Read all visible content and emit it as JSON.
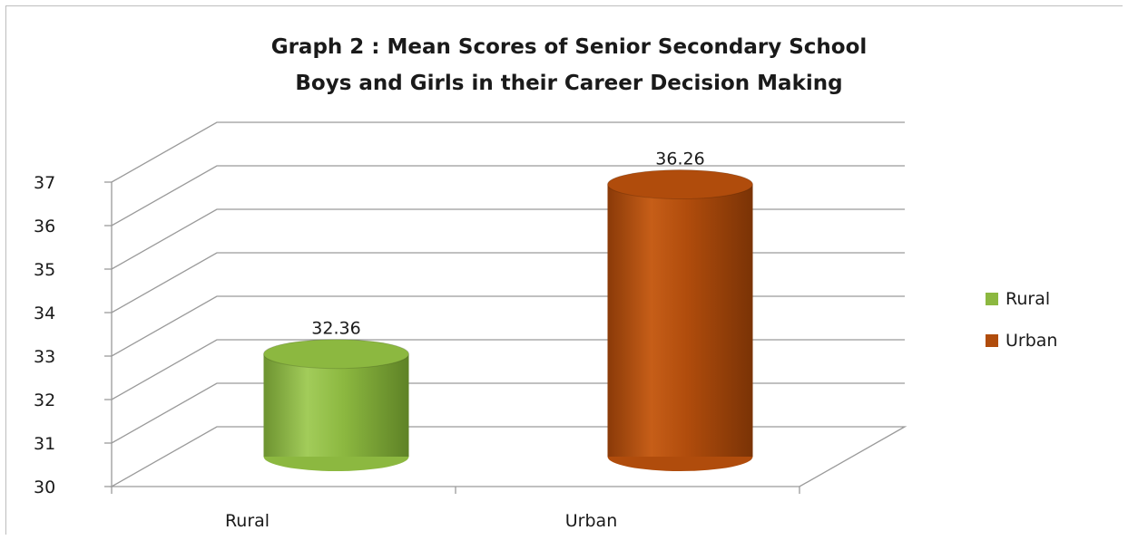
{
  "chart_data": {
    "type": "bar",
    "style": "3d-cylinder",
    "title": "Graph 2   : Mean Scores  of Senior Secondary School Boys and Girls  in their Career Decision Making",
    "title_lines": [
      "Graph 2   : Mean Scores  of Senior Secondary School",
      "Boys and Girls  in their Career Decision Making"
    ],
    "categories": [
      "Rural",
      "Urban"
    ],
    "series": [
      {
        "name": "Rural",
        "color": "#8cb840",
        "values": [
          32.36,
          null
        ]
      },
      {
        "name": "Urban",
        "color": "#b04c0c",
        "values": [
          null,
          36.26
        ]
      }
    ],
    "data_labels": [
      "32.36",
      "36.26"
    ],
    "ylim": [
      30,
      37
    ],
    "yticks": [
      "30",
      "31",
      "32",
      "33",
      "34",
      "35",
      "36",
      "37"
    ],
    "xlabel": "",
    "ylabel": "",
    "grid": true,
    "legend_position": "right",
    "legend": [
      {
        "label": "Rural",
        "color": "#8cb840"
      },
      {
        "label": "Urban",
        "color": "#b04c0c"
      }
    ]
  }
}
